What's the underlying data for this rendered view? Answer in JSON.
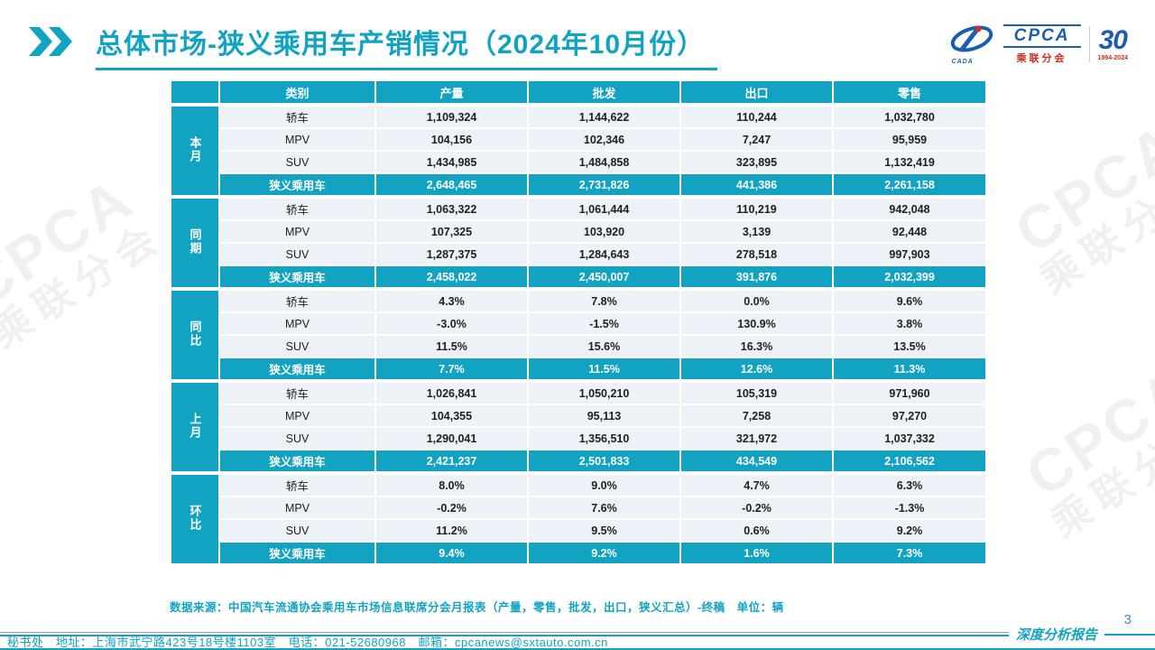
{
  "page": {
    "title": "总体市场-狭义乘用车产销情况（2024年10月份）",
    "page_number": "3",
    "report_label": "深度分析报告",
    "source_note": "数据来源：中国汽车流通协会乘用车市场信息联席分会月报表（产量，零售，批发，出口，狭义汇总）-终稿　单位：辆",
    "footer_contact": "秘书处　地址：上海市武宁路423号18号楼1103室　电话：021-52680968　邮箱：cpcanews@sxtauto.com.cn"
  },
  "logo": {
    "cpca": "CPCA",
    "cpca_cn": "乘联分会",
    "emblem_text": "CADA",
    "anniversary": "30",
    "anniversary_years": "1994-2024"
  },
  "watermark": {
    "en": "CPCA",
    "cn": "乘联分会"
  },
  "colors": {
    "teal": "#12a3c2",
    "row_bg": "#edf1f8",
    "logo_blue": "#1b5eb0",
    "logo_red": "#d42a1f"
  },
  "chart_data": {
    "type": "table",
    "columns": [
      "类别",
      "产量",
      "批发",
      "出口",
      "零售"
    ],
    "groups": [
      {
        "label": "本月",
        "rows": [
          {
            "category": "轿车",
            "values": [
              "1,109,324",
              "1,144,622",
              "110,244",
              "1,032,780"
            ],
            "highlight": false
          },
          {
            "category": "MPV",
            "values": [
              "104,156",
              "102,346",
              "7,247",
              "95,959"
            ],
            "highlight": false
          },
          {
            "category": "SUV",
            "values": [
              "1,434,985",
              "1,484,858",
              "323,895",
              "1,132,419"
            ],
            "highlight": false
          },
          {
            "category": "狭义乘用车",
            "values": [
              "2,648,465",
              "2,731,826",
              "441,386",
              "2,261,158"
            ],
            "highlight": true
          }
        ]
      },
      {
        "label": "同期",
        "rows": [
          {
            "category": "轿车",
            "values": [
              "1,063,322",
              "1,061,444",
              "110,219",
              "942,048"
            ],
            "highlight": false
          },
          {
            "category": "MPV",
            "values": [
              "107,325",
              "103,920",
              "3,139",
              "92,448"
            ],
            "highlight": false
          },
          {
            "category": "SUV",
            "values": [
              "1,287,375",
              "1,284,643",
              "278,518",
              "997,903"
            ],
            "highlight": false
          },
          {
            "category": "狭义乘用车",
            "values": [
              "2,458,022",
              "2,450,007",
              "391,876",
              "2,032,399"
            ],
            "highlight": true
          }
        ]
      },
      {
        "label": "同比",
        "rows": [
          {
            "category": "轿车",
            "values": [
              "4.3%",
              "7.8%",
              "0.0%",
              "9.6%"
            ],
            "highlight": false
          },
          {
            "category": "MPV",
            "values": [
              "-3.0%",
              "-1.5%",
              "130.9%",
              "3.8%"
            ],
            "highlight": false
          },
          {
            "category": "SUV",
            "values": [
              "11.5%",
              "15.6%",
              "16.3%",
              "13.5%"
            ],
            "highlight": false
          },
          {
            "category": "狭义乘用车",
            "values": [
              "7.7%",
              "11.5%",
              "12.6%",
              "11.3%"
            ],
            "highlight": true
          }
        ]
      },
      {
        "label": "上月",
        "rows": [
          {
            "category": "轿车",
            "values": [
              "1,026,841",
              "1,050,210",
              "105,319",
              "971,960"
            ],
            "highlight": false
          },
          {
            "category": "MPV",
            "values": [
              "104,355",
              "95,113",
              "7,258",
              "97,270"
            ],
            "highlight": false
          },
          {
            "category": "SUV",
            "values": [
              "1,290,041",
              "1,356,510",
              "321,972",
              "1,037,332"
            ],
            "highlight": false
          },
          {
            "category": "狭义乘用车",
            "values": [
              "2,421,237",
              "2,501,833",
              "434,549",
              "2,106,562"
            ],
            "highlight": true
          }
        ]
      },
      {
        "label": "环比",
        "rows": [
          {
            "category": "轿车",
            "values": [
              "8.0%",
              "9.0%",
              "4.7%",
              "6.3%"
            ],
            "highlight": false
          },
          {
            "category": "MPV",
            "values": [
              "-0.2%",
              "7.6%",
              "-0.2%",
              "-1.3%"
            ],
            "highlight": false
          },
          {
            "category": "SUV",
            "values": [
              "11.2%",
              "9.5%",
              "0.6%",
              "9.2%"
            ],
            "highlight": false
          },
          {
            "category": "狭义乘用车",
            "values": [
              "9.4%",
              "9.2%",
              "1.6%",
              "7.3%"
            ],
            "highlight": true
          }
        ]
      }
    ]
  }
}
